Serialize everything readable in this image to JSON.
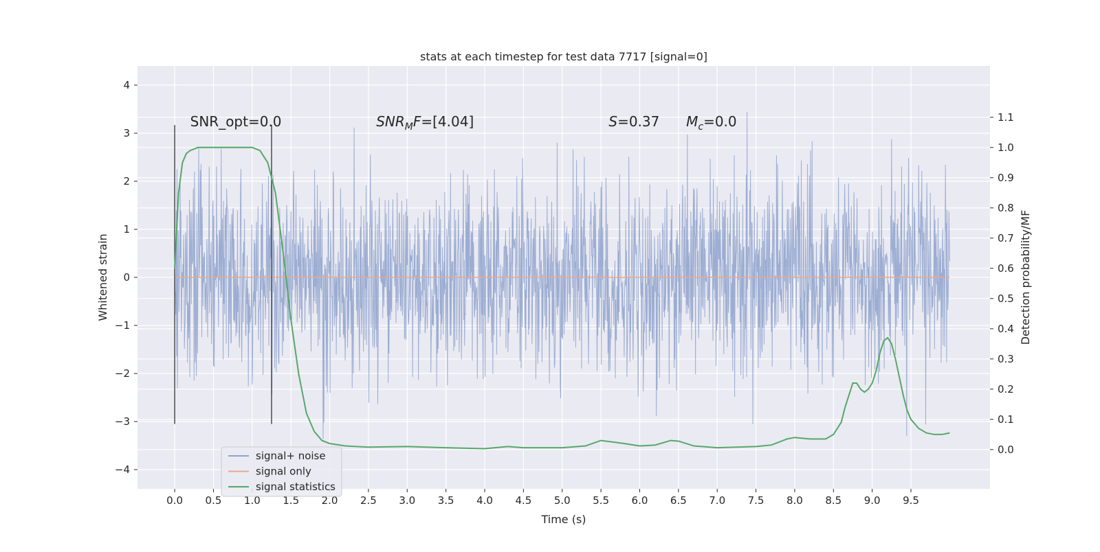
{
  "chart_data": {
    "type": "line",
    "title": "stats at each timestep for test data 7717 [signal=0]",
    "xlabel": "Time (s)",
    "ylabel": "Whitened strain",
    "ylabel_right": "Detection probability/MF",
    "xlim": [
      -0.48,
      10.52
    ],
    "ylim": [
      -4.4,
      4.4
    ],
    "ylim_right": [
      -0.13,
      1.27
    ],
    "x_ticks": [
      0.0,
      0.5,
      1.0,
      1.5,
      2.0,
      2.5,
      3.0,
      3.5,
      4.0,
      4.5,
      5.0,
      5.5,
      6.0,
      6.5,
      7.0,
      7.5,
      8.0,
      8.5,
      9.0,
      9.5
    ],
    "x_tick_labels": [
      "0.0",
      "0.5",
      "1.0",
      "1.5",
      "2.0",
      "2.5",
      "3.0",
      "3.5",
      "4.0",
      "4.5",
      "5.0",
      "5.5",
      "6.0",
      "6.5",
      "7.0",
      "7.5",
      "8.0",
      "8.5",
      "9.0",
      "9.5"
    ],
    "y_ticks": [
      -4,
      -3,
      -2,
      -1,
      0,
      1,
      2,
      3,
      4
    ],
    "y_tick_labels": [
      "−4",
      "−3",
      "−2",
      "−1",
      "0",
      "1",
      "2",
      "3",
      "4"
    ],
    "y_right_ticks": [
      0.0,
      0.1,
      0.2,
      0.3,
      0.4,
      0.5,
      0.6,
      0.7,
      0.8,
      0.9,
      1.0,
      1.1
    ],
    "y_right_tick_labels": [
      "0.0",
      "0.1",
      "0.2",
      "0.3",
      "0.4",
      "0.5",
      "0.6",
      "0.7",
      "0.8",
      "0.9",
      "1.0",
      "1.1"
    ],
    "grid": true,
    "legend": {
      "placement": "lower-left",
      "entries": [
        {
          "label": "signal+ noise",
          "color": "#8ea2cc"
        },
        {
          "label": "signal only",
          "color": "#e7a98f"
        },
        {
          "label": "signal statistics",
          "color": "#55a868"
        }
      ]
    },
    "annotations": [
      {
        "text": "SNR_opt=0.0",
        "x": 0.2,
        "y": 3.2
      },
      {
        "text": "SNR_MF=[4.04]",
        "x": 2.6,
        "y": 3.2
      },
      {
        "text": "S=0.37",
        "x": 5.6,
        "y": 3.2
      },
      {
        "text": "M_c=0.0",
        "x": 6.6,
        "y": 3.2
      }
    ],
    "vlines": [
      {
        "x": 0.0,
        "y_from": -3.05,
        "y_to": 3.17
      },
      {
        "x": 1.25,
        "y_from": -3.05,
        "y_to": 3.17
      }
    ],
    "series": [
      {
        "name": "signal+ noise",
        "color": "#8ea2cc",
        "x_range": [
          0,
          10
        ],
        "description": "dense whitened noise, ~N(0,1)",
        "sample_rate": 200
      },
      {
        "name": "signal only",
        "color": "#e7a98f",
        "x": [
          0,
          10
        ],
        "y": [
          0,
          0
        ]
      },
      {
        "name": "signal statistics",
        "color": "#55a868",
        "axis": "right",
        "x": [
          0.0,
          0.05,
          0.1,
          0.15,
          0.2,
          0.3,
          0.5,
          0.8,
          1.0,
          1.1,
          1.2,
          1.3,
          1.4,
          1.5,
          1.6,
          1.7,
          1.8,
          1.9,
          2.0,
          2.2,
          2.5,
          3.0,
          3.5,
          4.0,
          4.3,
          4.5,
          5.0,
          5.3,
          5.5,
          5.8,
          6.0,
          6.2,
          6.4,
          6.5,
          6.7,
          7.0,
          7.5,
          7.7,
          7.9,
          8.0,
          8.2,
          8.4,
          8.5,
          8.6,
          8.65,
          8.7,
          8.75,
          8.8,
          8.85,
          8.9,
          8.95,
          9.0,
          9.05,
          9.1,
          9.15,
          9.2,
          9.25,
          9.3,
          9.35,
          9.4,
          9.45,
          9.5,
          9.6,
          9.7,
          9.8,
          9.9,
          10.0
        ],
        "y": [
          0.6,
          0.85,
          0.95,
          0.98,
          0.99,
          1.0,
          1.0,
          1.0,
          1.0,
          0.99,
          0.95,
          0.85,
          0.65,
          0.43,
          0.25,
          0.12,
          0.06,
          0.03,
          0.02,
          0.012,
          0.008,
          0.01,
          0.006,
          0.003,
          0.01,
          0.006,
          0.006,
          0.012,
          0.03,
          0.02,
          0.012,
          0.015,
          0.03,
          0.028,
          0.012,
          0.006,
          0.01,
          0.015,
          0.035,
          0.04,
          0.035,
          0.035,
          0.05,
          0.09,
          0.14,
          0.18,
          0.22,
          0.22,
          0.2,
          0.19,
          0.2,
          0.22,
          0.26,
          0.32,
          0.36,
          0.37,
          0.35,
          0.3,
          0.24,
          0.18,
          0.13,
          0.1,
          0.07,
          0.055,
          0.05,
          0.05,
          0.055
        ]
      }
    ]
  }
}
